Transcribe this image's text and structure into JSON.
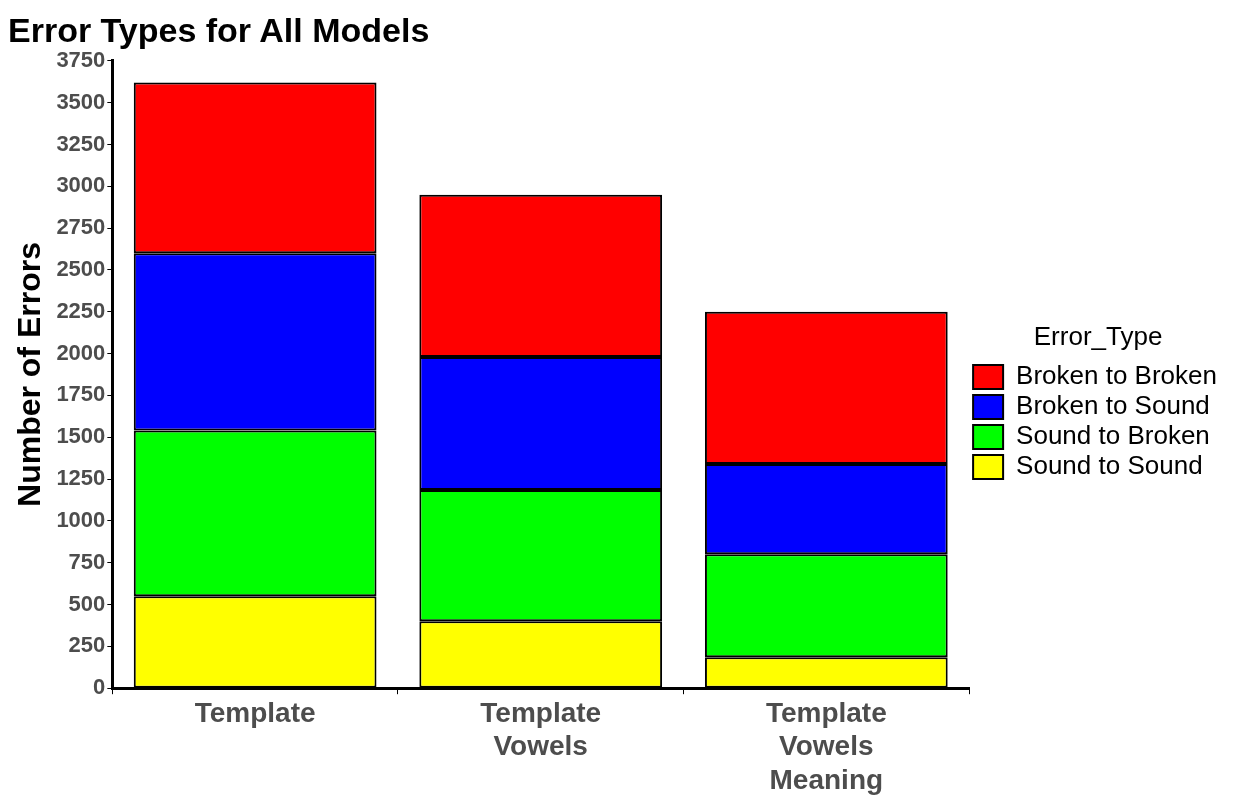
{
  "chart_data": {
    "type": "bar",
    "title": "Error Types for All Models",
    "ylabel": "Number of Errors",
    "legend_title": "Error_Type",
    "categories": [
      "Template",
      "Template\nVowels",
      "Template\nVowels\nMeaning"
    ],
    "stacked": true,
    "legend": "right",
    "grid": false,
    "ylim": [
      0,
      3750
    ],
    "yticks": [
      0,
      250,
      500,
      750,
      1000,
      1250,
      1500,
      1750,
      2000,
      2250,
      2500,
      2750,
      3000,
      3250,
      3500,
      3750
    ],
    "series": [
      {
        "name": "Sound to Sound",
        "color": "#ffff00",
        "values": [
          550,
          400,
          185
        ]
      },
      {
        "name": "Sound to Broken",
        "color": "#00ff00",
        "values": [
          990,
          785,
          615
        ]
      },
      {
        "name": "Broken to Sound",
        "color": "#0000ff",
        "values": [
          1060,
          795,
          540
        ]
      },
      {
        "name": "Broken to Broken",
        "color": "#ff0000",
        "values": [
          1020,
          970,
          910
        ]
      }
    ]
  }
}
